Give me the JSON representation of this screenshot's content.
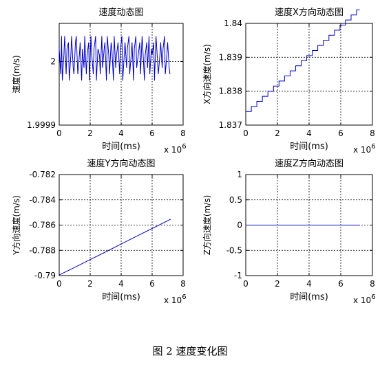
{
  "caption": "图 2  速度变化图",
  "chart_data": [
    {
      "type": "line",
      "title": "速度动态图",
      "xlabel": "时间(ms)",
      "ylabel": "速度(m/s)",
      "x_multiplier": "x 10",
      "x_multiplier_exp": "6",
      "xlim": [
        0,
        8
      ],
      "ylim": [
        1.9999,
        2.00006
      ],
      "xticks": [
        0,
        2,
        4,
        6,
        8
      ],
      "yticks": [
        1.9999,
        2
      ],
      "ytick_labels": [
        "1.9999",
        "2"
      ],
      "grid": true,
      "color": "#0000cc",
      "x": [
        0.0,
        0.1,
        0.15,
        0.2,
        0.3,
        0.35,
        0.45,
        0.5,
        0.6,
        0.65,
        0.75,
        0.8,
        0.9,
        0.95,
        1.05,
        1.1,
        1.2,
        1.3,
        1.35,
        1.45,
        1.5,
        1.6,
        1.65,
        1.75,
        1.8,
        1.9,
        1.95,
        2.05,
        2.1,
        2.2,
        2.25,
        2.35,
        2.4,
        2.5,
        2.6,
        2.65,
        2.75,
        2.8,
        2.9,
        2.95,
        3.05,
        3.1,
        3.2,
        3.25,
        3.35,
        3.4,
        3.5,
        3.55,
        3.65,
        3.7,
        3.8,
        3.9,
        3.95,
        4.05,
        4.1,
        4.2,
        4.25,
        4.35,
        4.4,
        4.5,
        4.55,
        4.65,
        4.7,
        4.8,
        4.85,
        4.95,
        5.0,
        5.1,
        5.2,
        5.25,
        5.35,
        5.4,
        5.5,
        5.55,
        5.65,
        5.7,
        5.8,
        5.85,
        5.95,
        6.0,
        6.1,
        6.15,
        6.25,
        6.3,
        6.4,
        6.5,
        6.55,
        6.65,
        6.7,
        6.8,
        6.85,
        6.95,
        7.0,
        7.1,
        7.15
      ],
      "y": [
        2.00002,
        1.99998,
        2.00004,
        1.99997,
        2.00001,
        2.00004,
        1.99998,
        2.00002,
        2.00003,
        1.99997,
        2.00001,
        2.00004,
        1.99999,
        1.99998,
        2.00003,
        2.00004,
        1.99998,
        2.00001,
        2.00003,
        1.99997,
        2.00002,
        1.99999,
        2.00004,
        1.99998,
        2.00001,
        2.00003,
        1.99997,
        2.00004,
        2.00001,
        1.99998,
        2.00002,
        2.00004,
        1.99997,
        2.00002,
        2.00001,
        1.99998,
        2.00004,
        1.99999,
        2.00002,
        2.00003,
        1.99997,
        2.00004,
        2.00001,
        1.99998,
        2.00003,
        2.00002,
        1.99997,
        2.00004,
        1.99999,
        2.00001,
        2.00003,
        1.99998,
        2.00002,
        2.00004,
        1.99997,
        2.00001,
        2.00003,
        1.99999,
        2.00002,
        2.00004,
        1.99998,
        2.00001,
        2.00003,
        1.99997,
        2.00002,
        2.00004,
        1.99999,
        2.00001,
        2.00003,
        1.99998,
        2.00004,
        2.00002,
        1.99997,
        2.00001,
        2.00003,
        1.99999,
        2.00004,
        1.99998,
        2.00002,
        2.00001,
        2.00003,
        1.99997,
        2.00004,
        2.00002,
        1.99998,
        2.00001,
        2.00003,
        1.99999,
        2.00002,
        2.00004,
        1.99998,
        2.00001,
        2.00003,
        1.99999,
        1.99998
      ]
    },
    {
      "type": "line",
      "title": "速度X方向动态图",
      "xlabel": "时间(ms)",
      "ylabel": "X方向速度(m/s)",
      "x_multiplier": "x 10",
      "x_multiplier_exp": "6",
      "xlim": [
        0,
        8
      ],
      "ylim": [
        1.837,
        1.84
      ],
      "xticks": [
        0,
        2,
        4,
        6,
        8
      ],
      "yticks": [
        1.837,
        1.838,
        1.839,
        1.84
      ],
      "ytick_labels": [
        "1.837",
        "1.838",
        "1.839",
        "1.84"
      ],
      "grid": true,
      "color": "#0000cc",
      "step": true,
      "x": [
        0.0,
        0.35,
        0.7,
        1.05,
        1.4,
        1.75,
        2.1,
        2.45,
        2.8,
        3.15,
        3.5,
        3.85,
        4.2,
        4.55,
        4.9,
        5.25,
        5.6,
        5.95,
        6.3,
        6.65,
        7.0,
        7.2
      ],
      "y": [
        1.8374,
        1.83755,
        1.8377,
        1.83785,
        1.838,
        1.83815,
        1.8383,
        1.83845,
        1.8386,
        1.83875,
        1.8389,
        1.83905,
        1.8392,
        1.83935,
        1.8395,
        1.83965,
        1.8398,
        1.83995,
        1.8401,
        1.84025,
        1.8404,
        1.8404
      ]
    },
    {
      "type": "line",
      "title": "速度Y方向动态图",
      "xlabel": "时间(ms)",
      "ylabel": "Y方向速度(m/s)",
      "x_multiplier": "x 10",
      "x_multiplier_exp": "6",
      "xlim": [
        0,
        8
      ],
      "ylim": [
        -0.79,
        -0.782
      ],
      "xticks": [
        0,
        2,
        4,
        6,
        8
      ],
      "yticks": [
        -0.79,
        -0.788,
        -0.786,
        -0.784,
        -0.782
      ],
      "ytick_labels": [
        "-0.79",
        "-0.788",
        "-0.786",
        "-0.784",
        "-0.782"
      ],
      "grid": true,
      "color": "#0000cc",
      "x": [
        0.0,
        1.0,
        2.0,
        3.0,
        4.0,
        5.0,
        6.0,
        7.2
      ],
      "y": [
        -0.78995,
        -0.78935,
        -0.78873,
        -0.78812,
        -0.7875,
        -0.78688,
        -0.78627,
        -0.78553
      ]
    },
    {
      "type": "line",
      "title": "速度Z方向动态图",
      "xlabel": "时间(ms)",
      "ylabel": "Z方向速度(m/s)",
      "x_multiplier": "x 10",
      "x_multiplier_exp": "6",
      "xlim": [
        0,
        8
      ],
      "ylim": [
        -1,
        1
      ],
      "xticks": [
        0,
        2,
        4,
        6,
        8
      ],
      "yticks": [
        -1,
        -0.5,
        0,
        0.5,
        1
      ],
      "ytick_labels": [
        "-1",
        "-0.5",
        "0",
        "0.5",
        "1"
      ],
      "grid": true,
      "color": "#0000cc",
      "x": [
        0.0,
        7.2
      ],
      "y": [
        0,
        0
      ]
    }
  ]
}
